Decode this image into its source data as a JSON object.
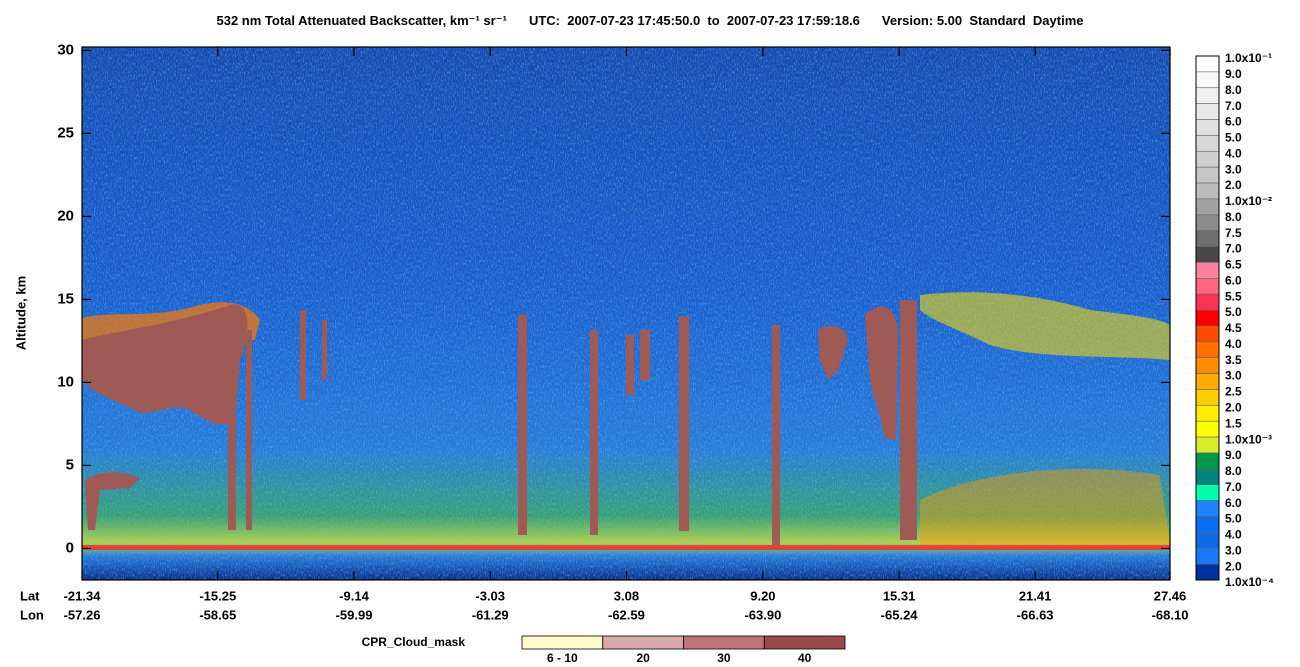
{
  "chart_data": {
    "type": "curtain",
    "title": "532 nm Total Attenuated Backscatter, km⁻¹ sr⁻¹",
    "time_range": "UTC:  2007-07-23 17:45:50.0  to  2007-07-23 17:59:18.6",
    "version": "Version: 5.00  Standard  Daytime",
    "ylabel": "Altitude, km",
    "ylim": [
      -1.9,
      30.2
    ],
    "yticks": [
      0,
      5,
      10,
      15,
      20,
      25,
      30
    ],
    "xlim": [
      -21.34,
      27.46
    ],
    "x_label": "Lat",
    "xticks": [
      -21.34,
      -15.25,
      -9.14,
      -3.03,
      3.08,
      {
        "value": 9.2,
        "label": "9.20"
      },
      15.31,
      21.41,
      27.46
    ],
    "x2_label": "Lon",
    "x2ticks": [
      -57.26,
      -58.65,
      -59.99,
      -61.29,
      -62.59,
      {
        "value": -63.9,
        "label": "-63.90"
      },
      -65.24,
      -66.63,
      {
        "value": -68.1,
        "label": "-68.10"
      }
    ],
    "colorbar": {
      "labels": [
        "1.0x10⁻¹",
        "9.0",
        "8.0",
        "7.0",
        "6.0",
        "5.0",
        "4.0",
        "3.0",
        "2.0",
        "1.0x10⁻²",
        "8.0",
        "7.5",
        "7.0",
        "6.5",
        "6.0",
        "5.5",
        "5.0",
        "4.5",
        "4.0",
        "3.5",
        "3.0",
        "2.5",
        "2.0",
        "1.5",
        "1.0x10⁻³",
        "9.0",
        "8.0",
        "7.0",
        "6.0",
        "5.0",
        "4.0",
        "3.0",
        "2.0",
        "1.0x10⁻⁴"
      ],
      "colors": [
        "#ffffff",
        "#f8f8f8",
        "#f0f0f0",
        "#e8e8e8",
        "#e0e0e0",
        "#d8d8d8",
        "#cfcfcf",
        "#c6c6c6",
        "#bcbcbc",
        "#a2a2a2",
        "#8c8c8c",
        "#6e6e6e",
        "#484848",
        "#ff80a0",
        "#ff6680",
        "#ff3355",
        "#ff0000",
        "#ff4a00",
        "#ff7000",
        "#ff8c00",
        "#ffaa00",
        "#ffcc00",
        "#ffee00",
        "#ffff00",
        "#d8ec2a",
        "#00994a",
        "#00877a",
        "#00ffaa",
        "#1e82ff",
        "#0a6ef0",
        "#0f6ae6",
        "#1a78ff",
        "#0032a0"
      ]
    },
    "cloud_mask": {
      "label": "CPR_Cloud_mask",
      "categories": [
        "6 - 10",
        "20",
        "30",
        "40"
      ],
      "colors": [
        "#fffacd",
        "#d9a9a9",
        "#bb7777",
        "#9a4a4a"
      ]
    }
  }
}
